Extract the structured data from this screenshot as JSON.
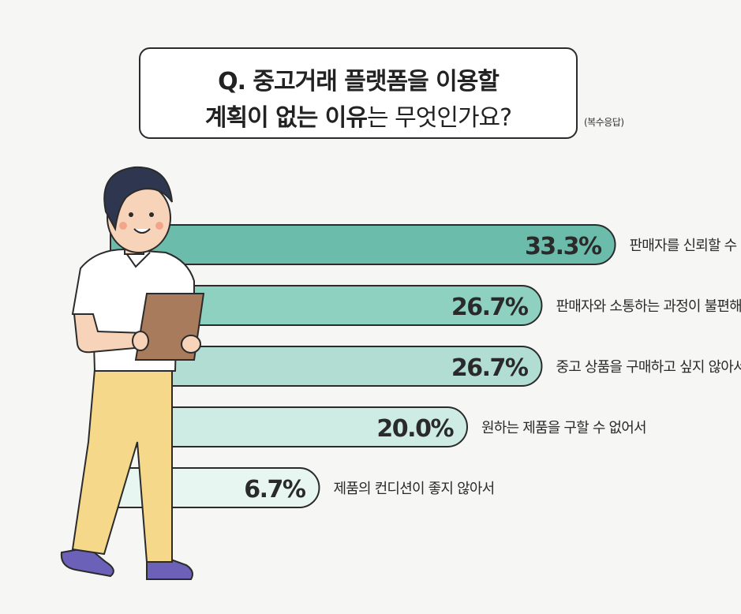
{
  "title": {
    "line1": "Q. 중고거래 플랫폼을 이용할",
    "line2_bold": "계획이 없는 이유",
    "line2_rest": "는 무엇인가요?",
    "note": "(복수응답)"
  },
  "chart_data": {
    "type": "bar",
    "orientation": "horizontal",
    "categories": [
      "판매자를 신뢰할 수 없어서",
      "판매자와 소통하는 과정이 불편해서",
      "중고 상품을 구매하고 싶지 않아서",
      "원하는 제품을 구할 수 없어서",
      "제품의 컨디션이 좋지 않아서"
    ],
    "values": [
      33.3,
      26.7,
      26.7,
      20.0,
      6.7
    ],
    "value_labels": [
      "33.3%",
      "26.7%",
      "26.7%",
      "20.0%",
      "6.7%"
    ],
    "unit": "%",
    "colors": [
      "#6cbcab",
      "#8fd1c1",
      "#b2ddd2",
      "#cfece4",
      "#e8f6f1"
    ],
    "outline_color": "#2b2b2b"
  }
}
